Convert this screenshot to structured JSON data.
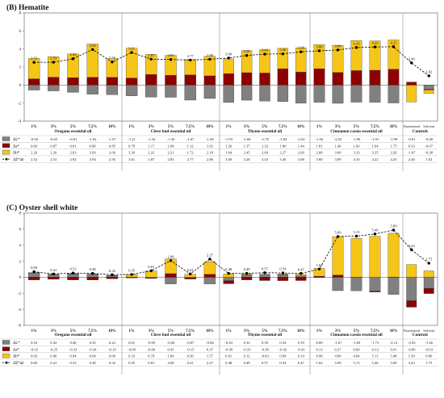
{
  "chart_data": [
    {
      "panel": "B",
      "title": "(B) Hematite",
      "type": "bar",
      "stacked": true,
      "grid": false,
      "ylim": [
        -4,
        8
      ],
      "yticks": [
        -4,
        -2,
        0,
        2,
        4,
        6,
        8
      ],
      "row_labels": [
        "ΔL*",
        "Δa*",
        "Δb*",
        "ΔE*ab"
      ],
      "colors": {
        "dL": "#808080",
        "da": "#8b0000",
        "db": "#f5c518",
        "dE": "#000000"
      },
      "groups": [
        {
          "name": "Oregano essential oil",
          "columns": [
            {
              "label": "1%",
              "dL": -0.56,
              "da": 0.69,
              "db": 2.26,
              "dE": 2.52
            },
            {
              "label": "3%",
              "dL": -0.65,
              "da": 0.87,
              "db": 2.26,
              "dE": 2.53
            },
            {
              "label": "5%",
              "dL": -0.81,
              "da": 0.81,
              "db": 2.63,
              "dE": 2.92
            },
            {
              "label": "7.5%",
              "dL": -1.02,
              "da": 0.86,
              "db": 3.69,
              "dE": 3.94
            },
            {
              "label": "10%",
              "dL": -1.07,
              "da": 0.85,
              "db": 2.06,
              "dE": 2.56
            }
          ]
        },
        {
          "name": "Clove bud essential oil",
          "columns": [
            {
              "label": "1%",
              "dL": -1.21,
              "da": 0.78,
              "db": 3.3,
              "dE": 3.61
            },
            {
              "label": "3%",
              "dL": -1.34,
              "da": 1.17,
              "db": 2.22,
              "dE": 2.87
            },
            {
              "label": "5%",
              "dL": -1.36,
              "da": 1.08,
              "db": 2.21,
              "dE": 2.83
            },
            {
              "label": "7.5%",
              "dL": -1.67,
              "da": 1.12,
              "db": 1.72,
              "dE": 2.77
            },
            {
              "label": "10%",
              "dL": -1.49,
              "da": 1.02,
              "db": 2.18,
              "dE": 2.86
            }
          ]
        },
        {
          "name": "Thyme essential oil",
          "columns": [
            {
              "label": "1%",
              "dL": -1.93,
              "da": 1.26,
              "db": 1.64,
              "dE": 3.0
            },
            {
              "label": "3%",
              "dL": -1.68,
              "da": 1.37,
              "db": 2.45,
              "dE": 3.28
            },
            {
              "label": "5%",
              "dL": -1.78,
              "da": 1.33,
              "db": 2.6,
              "dE": 3.43
            },
            {
              "label": "7.5%",
              "dL": -1.84,
              "da": 1.8,
              "db": 2.27,
              "dE": 3.46
            },
            {
              "label": "10%",
              "dL": -2.02,
              "da": 1.44,
              "db": 2.69,
              "dE": 3.68
            }
          ]
        },
        {
          "name": "Cinnamon cassia essential oil",
          "columns": [
            {
              "label": "1%",
              "dL": -1.92,
              "da": 1.81,
              "db": 2.68,
              "dE": 3.8
            },
            {
              "label": "3%",
              "dL": -2.03,
              "da": 1.4,
              "db": 3.0,
              "dE": 3.89
            },
            {
              "label": "5%",
              "dL": -1.9,
              "da": 1.6,
              "db": 3.33,
              "dE": 4.16
            },
            {
              "label": "7.5%",
              "dL": -1.91,
              "da": 1.64,
              "db": 3.25,
              "dE": 4.22
            },
            {
              "label": "10%",
              "dL": -1.99,
              "da": 1.75,
              "db": 3.26,
              "dE": 4.25
            }
          ]
        },
        {
          "name": "Controls",
          "columns": [
            {
              "label": "Nontreated",
              "dL": -0.01,
              "da": 0.33,
              "db": -1.87,
              "dE": 2.46
            },
            {
              "label": "Solvent",
              "dL": -0.48,
              "da": -0.07,
              "db": -0.38,
              "dE": 1.02
            }
          ]
        }
      ]
    },
    {
      "panel": "C",
      "title": "(C) Oyster shell white",
      "type": "bar",
      "stacked": true,
      "grid": false,
      "ylim": [
        -6,
        8
      ],
      "yticks": [
        -6,
        -4,
        -2,
        0,
        2,
        4,
        6,
        8
      ],
      "row_labels": [
        "ΔL*",
        "Δa*",
        "Δb*",
        "ΔE*ab"
      ],
      "colors": {
        "dL": "#808080",
        "da": "#8b0000",
        "db": "#f5c518",
        "dE": "#000000"
      },
      "groups": [
        {
          "name": "Oregano essential oil",
          "columns": [
            {
              "label": "1%",
              "dL": 0.54,
              "da": -0.33,
              "db": 0.03,
              "dE": 0.69
            },
            {
              "label": "3%",
              "dL": 0.32,
              "da": -0.25,
              "db": 0.06,
              "dE": 0.41
            },
            {
              "label": "5%",
              "dL": 0.4,
              "da": -0.33,
              "db": 0.04,
              "dE": 0.53
            },
            {
              "label": "7.5%",
              "dL": 0.35,
              "da": -0.34,
              "db": 0.04,
              "dE": 0.48
            },
            {
              "label": "10%",
              "dL": 0.22,
              "da": -0.19,
              "db": 0.0,
              "dE": 0.32
            }
          ]
        },
        {
          "name": "Clove bud essential oil",
          "columns": [
            {
              "label": "1%",
              "dL": 0.01,
              "da": -0.09,
              "db": 0.33,
              "dE": 0.35
            },
            {
              "label": "3%",
              "dL": -0.09,
              "da": -0.06,
              "db": 0.79,
              "dE": 0.81
            },
            {
              "label": "5%",
              "dL": -0.84,
              "da": 0.45,
              "db": 1.84,
              "dE": 2.08
            },
            {
              "label": "7.5%",
              "dL": -0.07,
              "da": -0.15,
              "db": 0.36,
              "dE": 0.41
            },
            {
              "label": "10%",
              "dL": -0.84,
              "da": 0.37,
              "db": 1.57,
              "dE": 2.27
            }
          ]
        },
        {
          "name": "Thyme essential oil",
          "columns": [
            {
              "label": "1%",
              "dL": -0.43,
              "da": -0.38,
              "db": 0.41,
              "dE": 0.48
            },
            {
              "label": "3%",
              "dL": 0.33,
              "da": -0.33,
              "db": 0.12,
              "dE": 0.49
            },
            {
              "label": "5%",
              "dL": 0.39,
              "da": -0.38,
              "db": -0.03,
              "dE": 0.57
            },
            {
              "label": "7.5%",
              "dL": 0.34,
              "da": -0.42,
              "db": 0.09,
              "dE": 0.54
            },
            {
              "label": "10%",
              "dL": 0.19,
              "da": -0.41,
              "db": 0.19,
              "dE": 0.47
            }
          ]
        },
        {
          "name": "Cinnamon cassia essential oil",
          "columns": [
            {
              "label": "1%",
              "dL": 0.0,
              "da": 0.13,
              "db": 0.98,
              "dE": 1.02
            },
            {
              "label": "3%",
              "dL": -1.67,
              "da": 0.27,
              "db": 4.8,
              "dE": 5.09
            },
            {
              "label": "5%",
              "dL": -1.69,
              "da": 0.0,
              "db": 4.84,
              "dE": 5.13
            },
            {
              "label": "7.5%",
              "dL": -1.73,
              "da": -0.12,
              "db": 5.11,
              "dE": 5.4
            },
            {
              "label": "10%",
              "dL": -2.14,
              "da": 0.01,
              "db": 5.48,
              "dE": 5.89
            }
          ]
        },
        {
          "name": "Controls",
          "columns": [
            {
              "label": "Nontreated",
              "dL": -2.93,
              "da": -0.8,
              "db": 1.59,
              "dE": 3.43
            },
            {
              "label": "Solvent",
              "dL": -1.4,
              "da": -0.63,
              "db": 0.8,
              "dE": 1.75
            }
          ]
        }
      ]
    }
  ]
}
